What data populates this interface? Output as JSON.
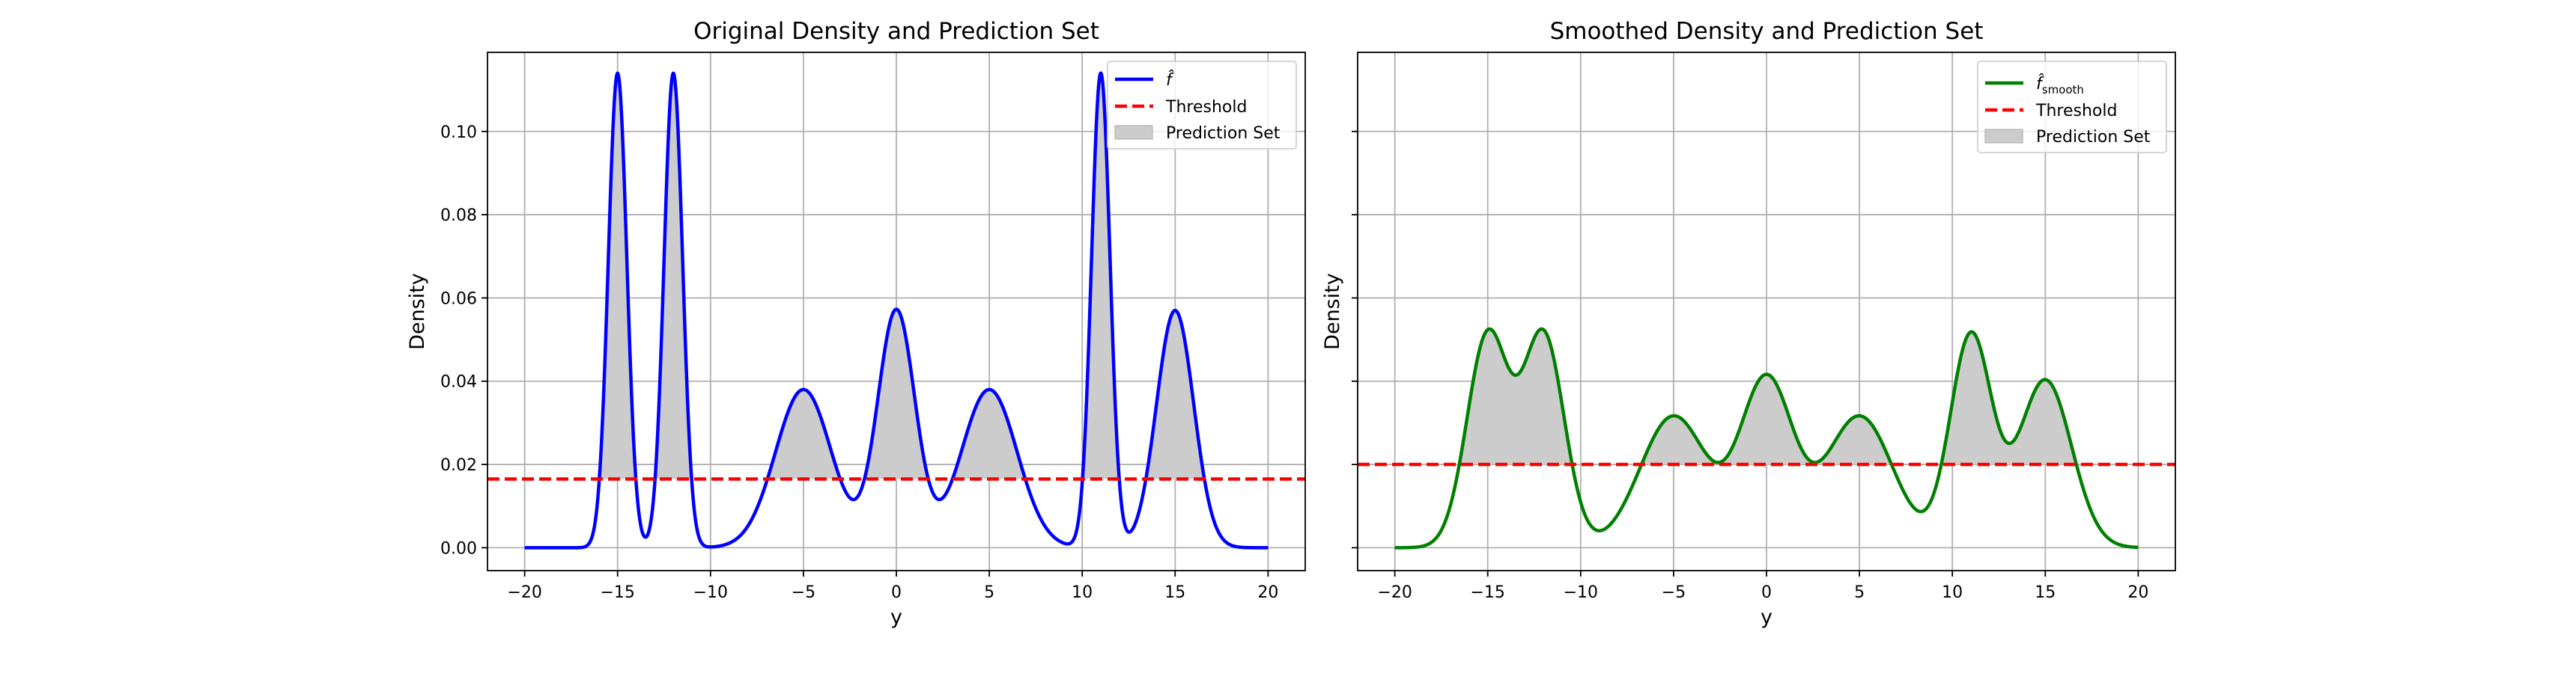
{
  "chart_data": [
    {
      "type": "line",
      "title": "Original Density and Prediction Set",
      "xlabel": "y",
      "ylabel": "Density",
      "xlim": [
        -22,
        22
      ],
      "ylim": [
        -0.0055,
        0.119
      ],
      "xticks": [
        -20,
        -15,
        -10,
        -5,
        0,
        5,
        10,
        15,
        20
      ],
      "yticks": [
        0.0,
        0.02,
        0.04,
        0.06,
        0.08,
        0.1
      ],
      "ytick_labels": [
        "0.00",
        "0.02",
        "0.04",
        "0.06",
        "0.08",
        "0.10"
      ],
      "show_ytick_labels": true,
      "grid": true,
      "x_range": [
        -20,
        20
      ],
      "mixture_components": [
        {
          "mean": -15,
          "sd": 0.5,
          "weight": 0.142857
        },
        {
          "mean": -12,
          "sd": 0.5,
          "weight": 0.142857
        },
        {
          "mean": -5,
          "sd": 1.5,
          "weight": 0.142857
        },
        {
          "mean": 0,
          "sd": 1.0,
          "weight": 0.142857
        },
        {
          "mean": 5,
          "sd": 1.5,
          "weight": 0.142857
        },
        {
          "mean": 11,
          "sd": 0.5,
          "weight": 0.142857
        },
        {
          "mean": 15,
          "sd": 1.0,
          "weight": 0.142857
        }
      ],
      "smoothing_sd": 0,
      "threshold": 0.0165,
      "line_color": "#0000ff",
      "threshold_color": "#ff0000",
      "fill_color": "#cccccc",
      "legend": {
        "position": "top-right",
        "entries": [
          {
            "label": "f̂",
            "sub": "",
            "kind": "line"
          },
          {
            "label": "Threshold",
            "sub": "",
            "kind": "dashed"
          },
          {
            "label": "Prediction Set",
            "sub": "",
            "kind": "patch"
          }
        ]
      }
    },
    {
      "type": "line",
      "title": "Smoothed Density and Prediction Set",
      "xlabel": "y",
      "ylabel": "Density",
      "xlim": [
        -22,
        22
      ],
      "ylim": [
        -0.0055,
        0.119
      ],
      "xticks": [
        -20,
        -15,
        -10,
        -5,
        0,
        5,
        10,
        15,
        20
      ],
      "yticks": [
        0.0,
        0.02,
        0.04,
        0.06,
        0.08,
        0.1
      ],
      "ytick_labels": [
        "0.00",
        "0.02",
        "0.04",
        "0.06",
        "0.08",
        "0.10"
      ],
      "show_ytick_labels": false,
      "grid": true,
      "x_range": [
        -20,
        20
      ],
      "mixture_components": [
        {
          "mean": -15,
          "sd": 0.5,
          "weight": 0.142857
        },
        {
          "mean": -12,
          "sd": 0.5,
          "weight": 0.142857
        },
        {
          "mean": -5,
          "sd": 1.5,
          "weight": 0.142857
        },
        {
          "mean": 0,
          "sd": 1.0,
          "weight": 0.142857
        },
        {
          "mean": 5,
          "sd": 1.5,
          "weight": 0.142857
        },
        {
          "mean": 11,
          "sd": 0.5,
          "weight": 0.142857
        },
        {
          "mean": 15,
          "sd": 1.0,
          "weight": 0.142857
        }
      ],
      "smoothing_sd": 1.0,
      "threshold": 0.02,
      "line_color": "#008000",
      "threshold_color": "#ff0000",
      "fill_color": "#cccccc",
      "legend": {
        "position": "top-right",
        "entries": [
          {
            "label": "f̂",
            "sub": "smooth",
            "kind": "line"
          },
          {
            "label": "Threshold",
            "sub": "",
            "kind": "dashed"
          },
          {
            "label": "Prediction Set",
            "sub": "",
            "kind": "patch"
          }
        ]
      }
    }
  ]
}
